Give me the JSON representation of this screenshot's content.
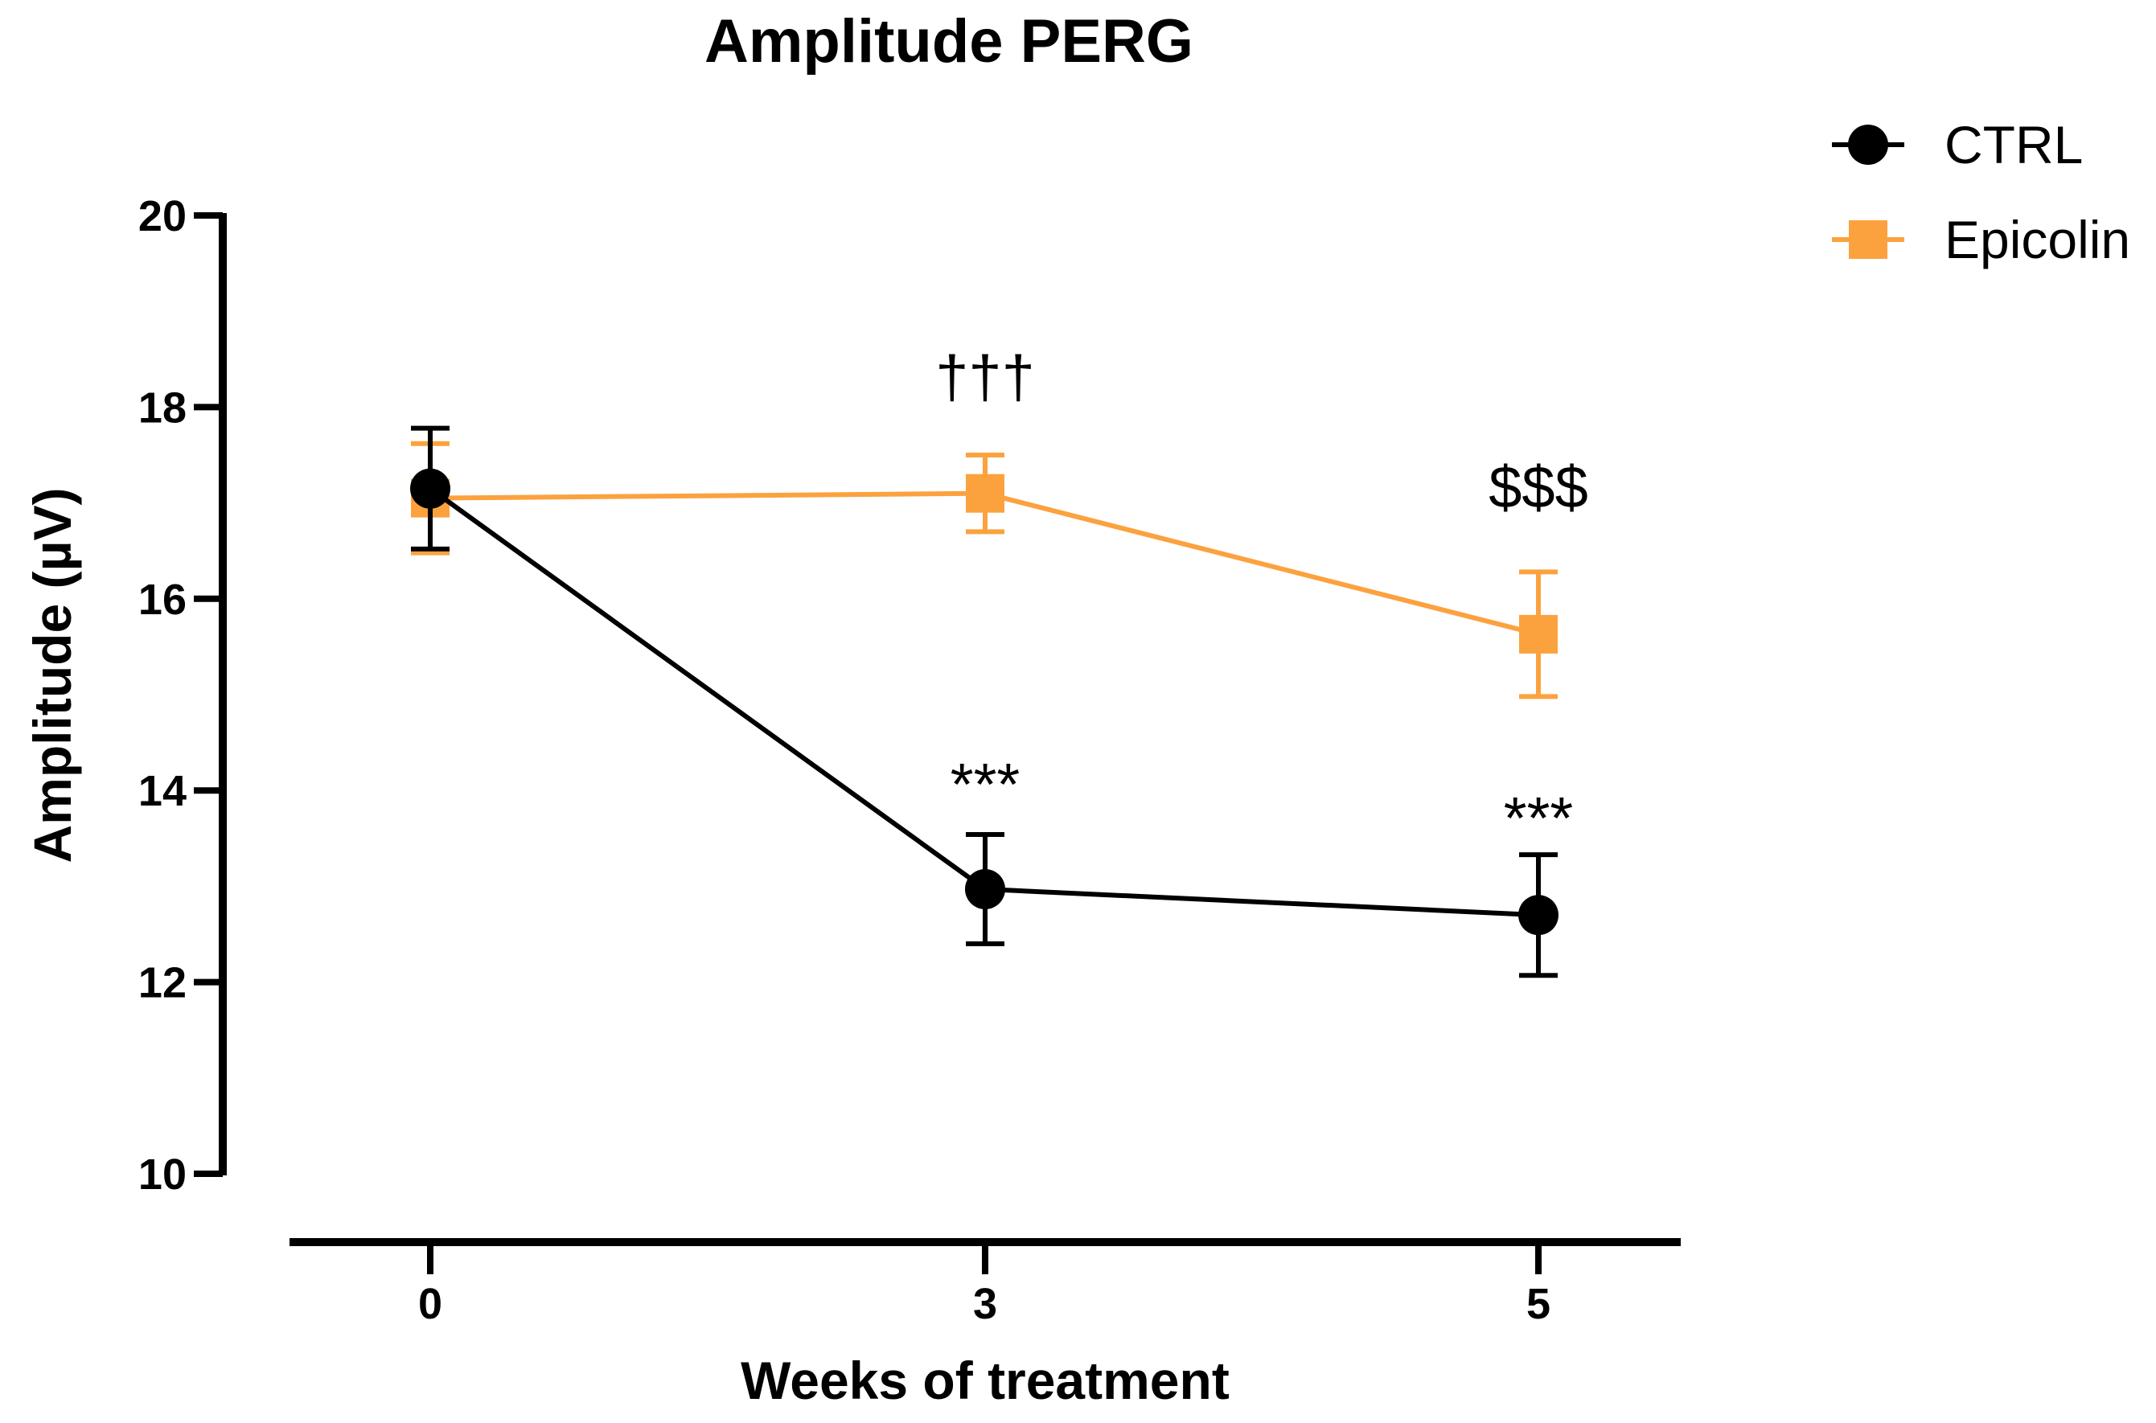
{
  "chart_data": {
    "type": "line",
    "title": "Amplitude PERG",
    "xlabel": "Weeks of treatment",
    "ylabel": "Amplitude (µV)",
    "x": [
      0,
      3,
      5
    ],
    "x_tick_labels": [
      "0",
      "3",
      "5"
    ],
    "ylim": [
      10,
      20
    ],
    "y_ticks": [
      10,
      12,
      14,
      16,
      18,
      20
    ],
    "y_tick_labels": [
      "10",
      "12",
      "14",
      "16",
      "18",
      "20"
    ],
    "grid": false,
    "legend_position": "top-right",
    "series": [
      {
        "name": "CTRL",
        "marker": "circle",
        "color": "#000000",
        "values": [
          17.15,
          12.97,
          12.7
        ],
        "error": [
          0.63,
          0.57,
          0.63
        ]
      },
      {
        "name": "Epicolin",
        "marker": "square",
        "color": "#FBA23F",
        "values": [
          17.05,
          17.1,
          15.63
        ],
        "error": [
          0.57,
          0.4,
          0.65
        ]
      }
    ],
    "annotations": [
      {
        "text": "†††",
        "x": 3,
        "y": 18.1
      },
      {
        "text": "$$$",
        "x": 5,
        "y": 16.95
      },
      {
        "text": "***",
        "x": 3,
        "y": 13.85
      },
      {
        "text": "***",
        "x": 5,
        "y": 13.5
      }
    ]
  }
}
